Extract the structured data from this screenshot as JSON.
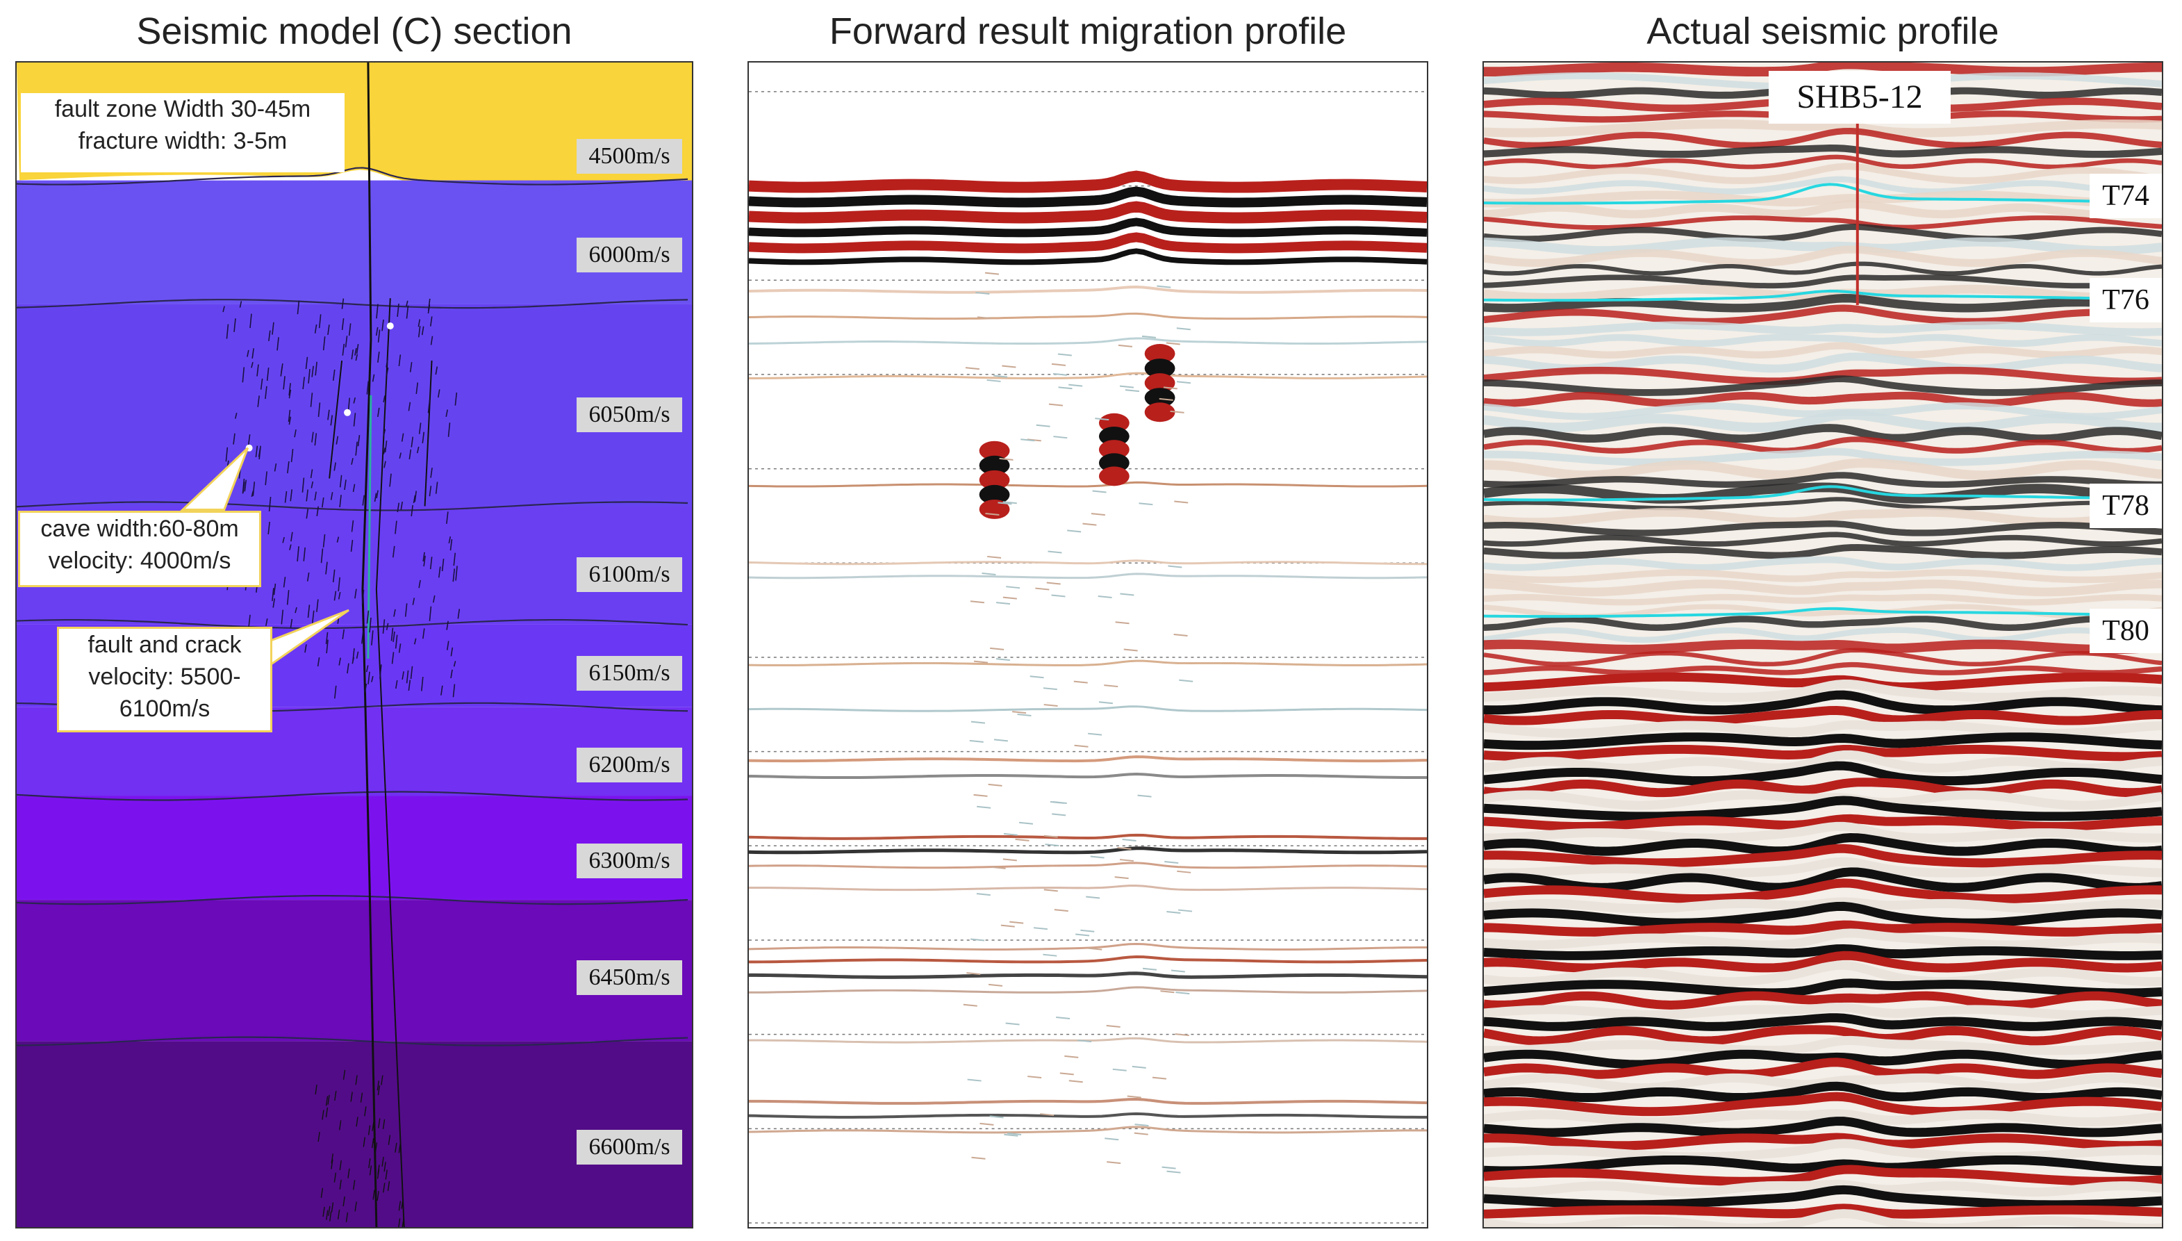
{
  "panels": {
    "model": {
      "title": "Seismic model (C) section",
      "callouts": {
        "fault_zone": "fault zone Width 30-45m\nfracture width: 3-5m",
        "cave": "cave width:60-80m\nvelocity: 4000m/s",
        "fault_crack": "fault and crack\nvelocity: 5500-\n6100m/s"
      },
      "velocities": [
        "4500m/s",
        "6000m/s",
        "6050m/s",
        "6100m/s",
        "6150m/s",
        "6200m/s",
        "6300m/s",
        "6450m/s",
        "6600m/s"
      ],
      "layer_colors": [
        "#f9d43a",
        "#6a52f2",
        "#6544f0",
        "#6a3ff2",
        "#6a38f4",
        "#7230f2",
        "#7b12ee",
        "#6a0ab8",
        "#520c88"
      ]
    },
    "forward": {
      "title": "Forward result migration profile"
    },
    "actual": {
      "title": "Actual seismic profile",
      "well": "SHB5-12",
      "horizons": [
        "T74",
        "T76",
        "T78",
        "T80"
      ]
    }
  },
  "colors": {
    "peak_red": "#b8201c",
    "trough_black": "#111111",
    "horizon_cyan": "#27d7e0",
    "well_red": "#c0302b",
    "callout_border": "#f2d35a"
  }
}
